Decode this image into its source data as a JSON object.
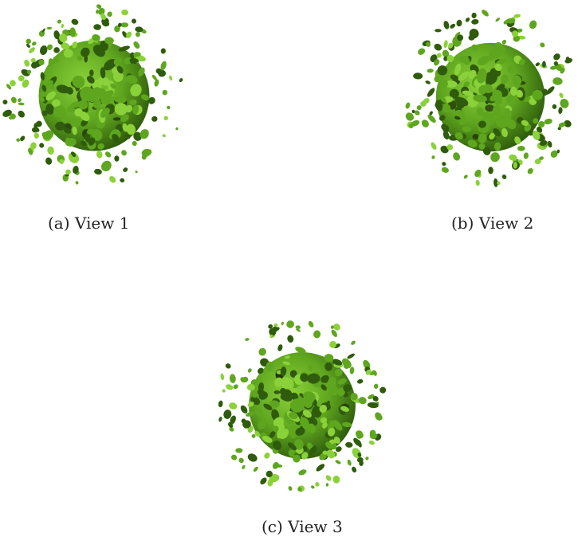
{
  "figure": {
    "panels": [
      {
        "id": "a",
        "caption": "(a) View 1",
        "subject": "green isosurface particle render",
        "color": "#5fa61f"
      },
      {
        "id": "b",
        "caption": "(b) View 2",
        "subject": "green isosurface particle render",
        "color": "#5fa61f"
      },
      {
        "id": "c",
        "caption": "(c) View 3",
        "subject": "green isosurface particle render",
        "color": "#5fa61f"
      }
    ]
  },
  "colors": {
    "particle_light": "#8bd13a",
    "particle_mid": "#5fa61f",
    "particle_dark": "#2f5c0c",
    "shadow": "#1a2a08",
    "background": "#ffffff"
  }
}
